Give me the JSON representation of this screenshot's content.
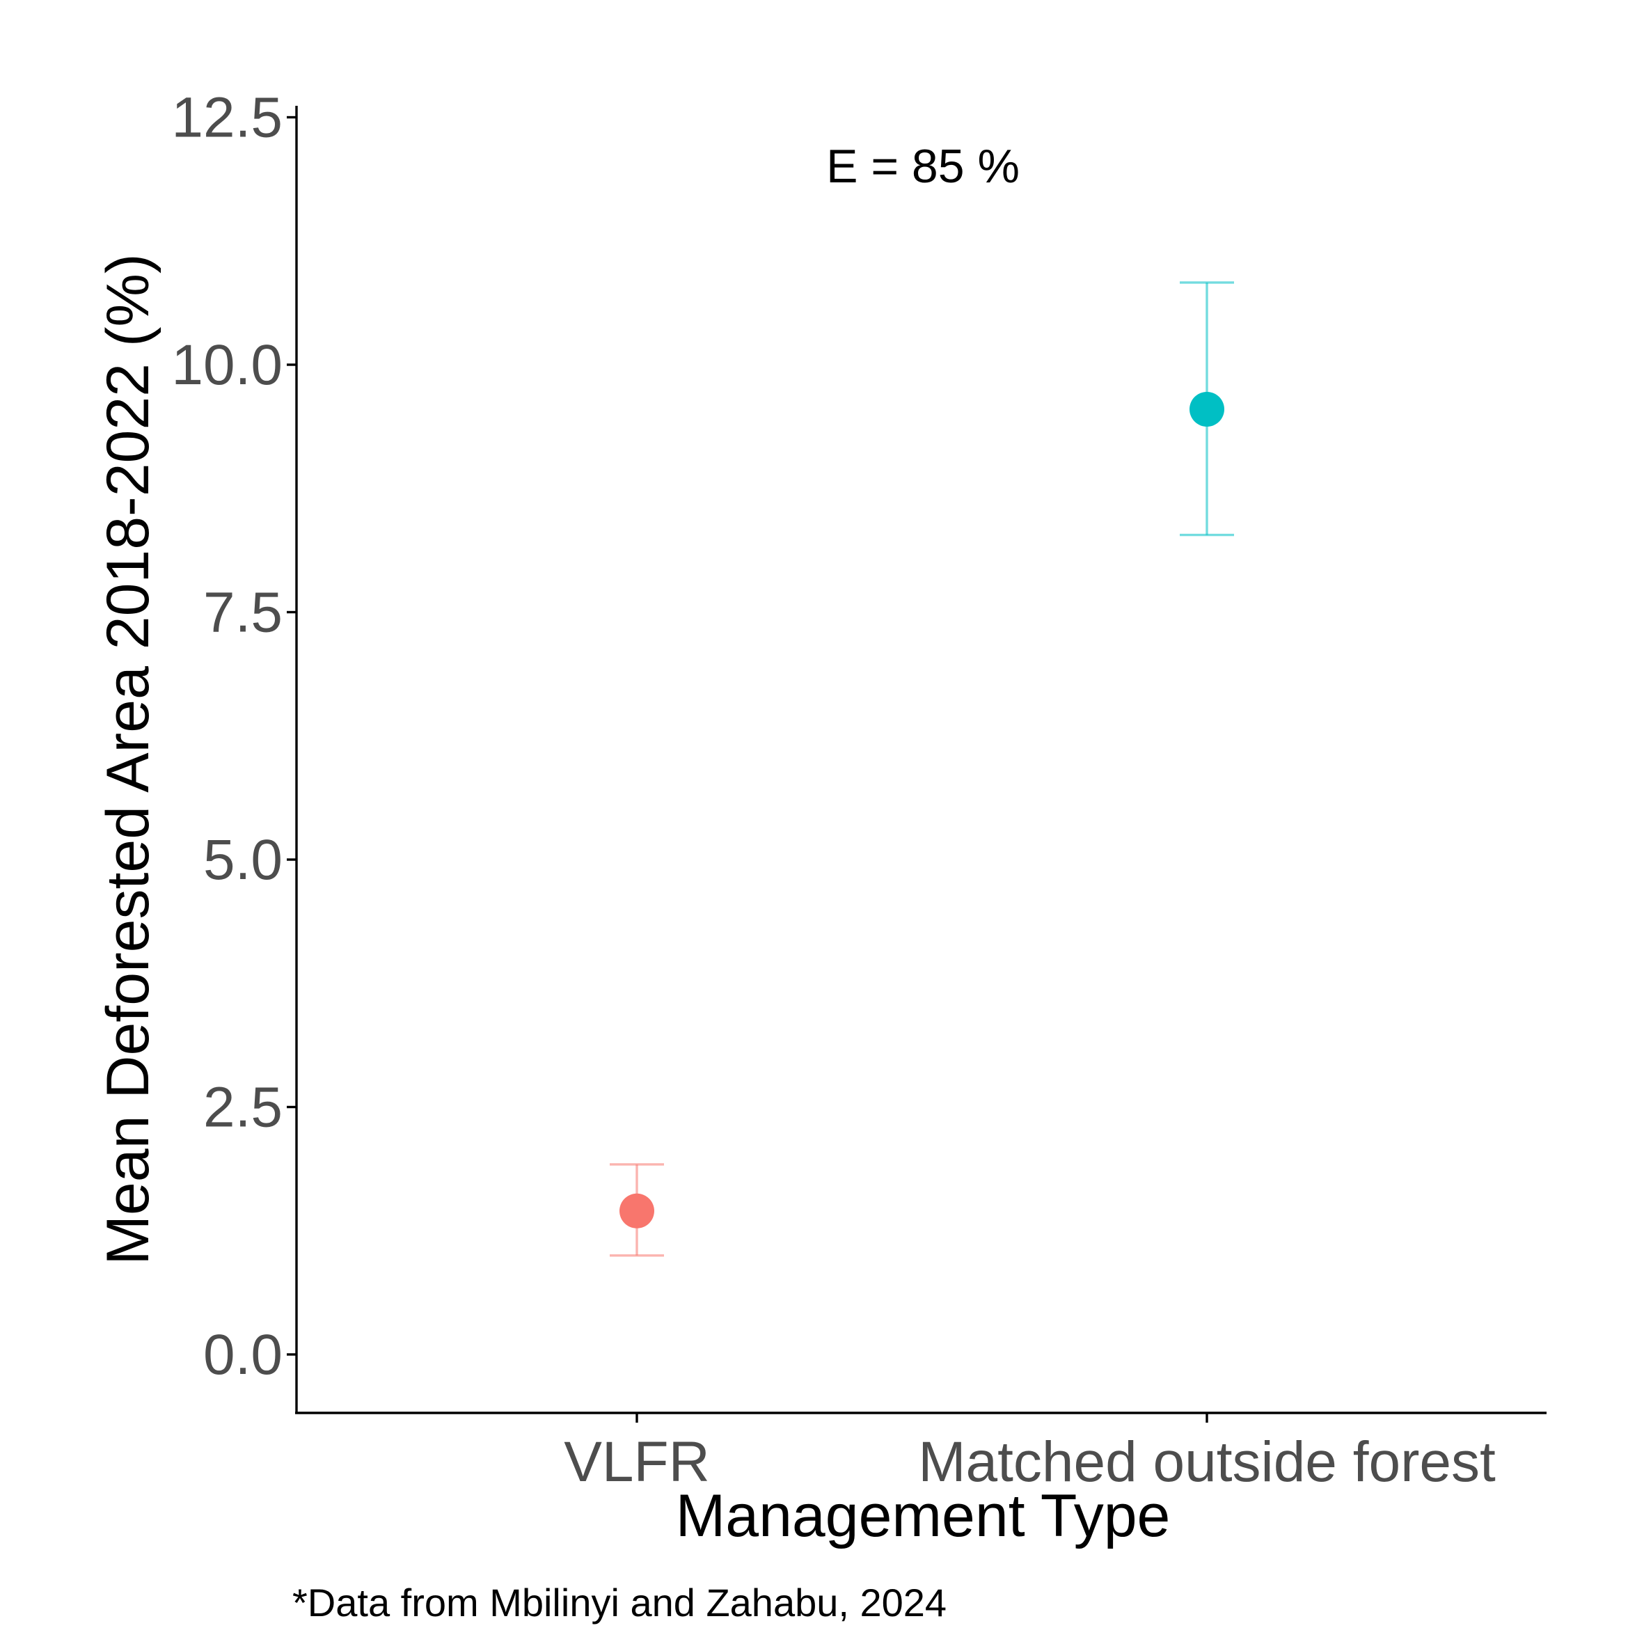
{
  "chart_data": {
    "type": "scatter",
    "title": "",
    "xlabel": "Management Type",
    "ylabel": "Mean Deforested Area 2018-2022 (%)",
    "categories": [
      "VLFR",
      "Matched outside forest"
    ],
    "points": [
      {
        "category": "VLFR",
        "y": 1.45,
        "ymin": 1.0,
        "ymax": 1.92,
        "color": "#F8766D"
      },
      {
        "category": "Matched outside forest",
        "y": 9.55,
        "ymin": 8.28,
        "ymax": 10.83,
        "color": "#00BFC4"
      }
    ],
    "ylim": [
      -0.6,
      12.6
    ],
    "yticks": [
      "0.0",
      "2.5",
      "5.0",
      "7.5",
      "10.0",
      "12.5"
    ],
    "grid": false,
    "legend": "none",
    "annotation": "E = 85 %",
    "caption": "*Data from Mbilinyi and Zahabu, 2024"
  }
}
